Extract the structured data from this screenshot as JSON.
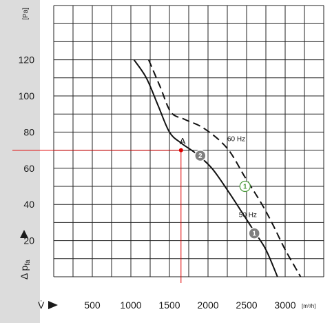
{
  "chart_data": {
    "type": "line",
    "x_tick_labels": [
      "500",
      "1000",
      "1500",
      "2000",
      "2500",
      "3000"
    ],
    "y_tick_labels": [
      "20",
      "40",
      "60",
      "80",
      "100",
      "120"
    ],
    "y_unit": "[Pa]",
    "x_unit": "[m³/h]",
    "ylabel": "Δ pfa",
    "ylabel_main": "Δ p",
    "ylabel_sub": "fa",
    "xlabel": "V̇",
    "xlim": [
      0,
      3500
    ],
    "ylim": [
      0,
      150
    ],
    "grid": true,
    "colors": {
      "background_axis": "#dcdcdc",
      "grid": "#222222",
      "curve": "#111111",
      "marker_line": "#e00000",
      "badge_fill": "#808080"
    },
    "series": [
      {
        "name": "50 Hz",
        "style": "solid",
        "points": [
          [
            1040,
            120
          ],
          [
            1200,
            110
          ],
          [
            1350,
            95
          ],
          [
            1500,
            80
          ],
          [
            1650,
            74
          ],
          [
            1850,
            68
          ],
          [
            2050,
            60
          ],
          [
            2250,
            48
          ],
          [
            2450,
            35
          ],
          [
            2600,
            25
          ],
          [
            2750,
            15
          ],
          [
            2900,
            0
          ]
        ]
      },
      {
        "name": "60 Hz",
        "style": "dashed",
        "points": [
          [
            1230,
            120
          ],
          [
            1380,
            105
          ],
          [
            1520,
            91
          ],
          [
            1700,
            87
          ],
          [
            1950,
            82
          ],
          [
            2250,
            71
          ],
          [
            2480,
            55
          ],
          [
            2700,
            40
          ],
          [
            2850,
            28
          ],
          [
            3000,
            15
          ],
          [
            3200,
            0
          ]
        ]
      }
    ],
    "annotations": [
      {
        "text": "A",
        "x": 1650,
        "y": 71
      },
      {
        "text": "60 Hz",
        "x": 2250,
        "y": 75
      },
      {
        "text": "50 Hz",
        "x": 2400,
        "y": 33
      }
    ],
    "badges": [
      {
        "text": "2",
        "x": 1900,
        "y": 67,
        "style": "filled"
      },
      {
        "text": "1",
        "x": 2480,
        "y": 50,
        "style": "outline"
      },
      {
        "text": "1",
        "x": 2600,
        "y": 24,
        "style": "filled"
      }
    ],
    "operating_point": {
      "x": 1650,
      "y": 70
    }
  }
}
